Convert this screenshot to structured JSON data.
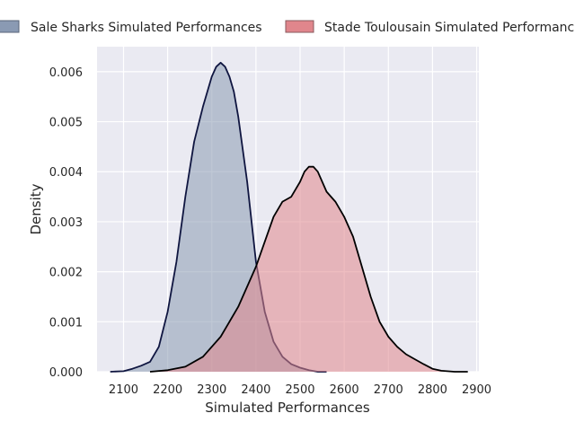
{
  "chart_data": {
    "type": "area",
    "title": "",
    "xlabel": "Simulated Performances",
    "ylabel": "Density",
    "xlim": [
      2040,
      2905
    ],
    "ylim": [
      0,
      0.0065
    ],
    "xticks": [
      2100,
      2200,
      2300,
      2400,
      2500,
      2600,
      2700,
      2800,
      2900
    ],
    "yticks": [
      0.0,
      0.001,
      0.002,
      0.003,
      0.004,
      0.005,
      0.006
    ],
    "ytick_labels": [
      "0.000",
      "0.001",
      "0.002",
      "0.003",
      "0.004",
      "0.005",
      "0.006"
    ],
    "grid": true,
    "legend_placement": "top",
    "series": [
      {
        "name": "Sale Sharks Simulated Performances",
        "fill_color": "#8a9ab3",
        "line_color": "#0f1540",
        "x": [
          2070,
          2100,
          2120,
          2140,
          2160,
          2180,
          2200,
          2220,
          2240,
          2260,
          2280,
          2300,
          2310,
          2320,
          2330,
          2340,
          2350,
          2360,
          2380,
          2400,
          2420,
          2440,
          2460,
          2480,
          2500,
          2520,
          2540,
          2560
        ],
        "y": [
          0.0,
          1e-05,
          6e-05,
          0.00012,
          0.0002,
          0.0005,
          0.0012,
          0.0022,
          0.0035,
          0.0046,
          0.0053,
          0.0059,
          0.0061,
          0.00618,
          0.0061,
          0.0059,
          0.0056,
          0.0051,
          0.0038,
          0.0022,
          0.0012,
          0.0006,
          0.0003,
          0.00015,
          8e-05,
          3e-05,
          0.0,
          0.0
        ]
      },
      {
        "name": "Stade Toulousain Simulated Performances",
        "fill_color": "#e0868c",
        "line_color": "#000000",
        "x": [
          2160,
          2200,
          2240,
          2280,
          2320,
          2360,
          2400,
          2420,
          2440,
          2460,
          2480,
          2500,
          2510,
          2520,
          2530,
          2540,
          2560,
          2580,
          2600,
          2620,
          2640,
          2660,
          2680,
          2700,
          2720,
          2740,
          2760,
          2780,
          2800,
          2820,
          2850,
          2880
        ],
        "y": [
          0.0,
          3e-05,
          0.0001,
          0.0003,
          0.0007,
          0.0013,
          0.0021,
          0.0026,
          0.0031,
          0.0034,
          0.0035,
          0.0038,
          0.004,
          0.0041,
          0.0041,
          0.004,
          0.0036,
          0.0034,
          0.0031,
          0.0027,
          0.0021,
          0.0015,
          0.001,
          0.0007,
          0.0005,
          0.00035,
          0.00025,
          0.00015,
          6e-05,
          2e-05,
          0.0,
          0.0
        ]
      }
    ]
  }
}
